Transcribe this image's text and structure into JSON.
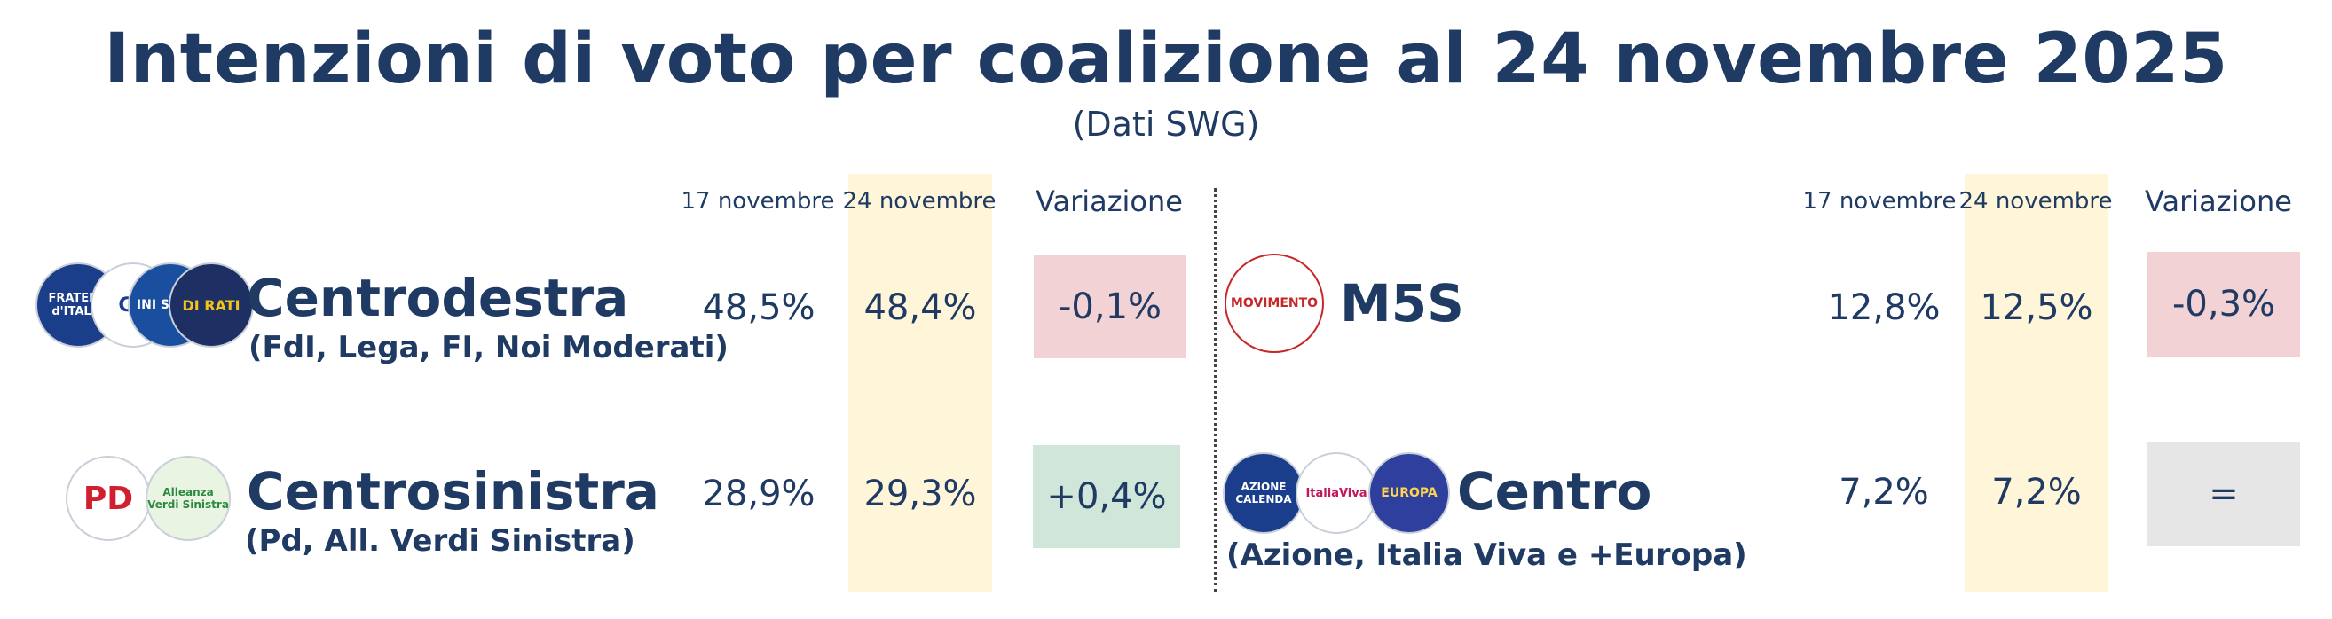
{
  "title": "Intenzioni di voto per coalizione al 24 novembre 2025",
  "subtitle": "(Dati SWG)",
  "column_headers": {
    "prev": "17 novembre",
    "curr": "24 novembre",
    "change": "Variazione"
  },
  "colors": {
    "highlight": "#fff6da",
    "negative": "#f2d2d4",
    "positive": "#cfe6d8",
    "neutral": "#e6e6e6",
    "text": "#1f3a63"
  },
  "chart_data": {
    "type": "table",
    "title": "Intenzioni di voto per coalizione al 24 novembre 2025",
    "columns": [
      "17 novembre",
      "24 novembre",
      "Variazione"
    ],
    "rows": [
      {
        "name": "Centrodestra",
        "members": "(FdI, Lega, FI, Noi Moderati)",
        "prev": "48,5%",
        "curr": "48,4%",
        "change": "-0,1%",
        "trend": "negative",
        "logos": [
          {
            "icon": "fdi-logo",
            "text": "FRATELLI d'ITALIA"
          },
          {
            "icon": "lega-logo",
            "text": "CA"
          },
          {
            "icon": "fi-logo",
            "text": "INI SCONI"
          },
          {
            "icon": "noi-moderati-logo",
            "text": "DI RATI"
          }
        ]
      },
      {
        "name": "Centrosinistra",
        "members": "(Pd, All. Verdi Sinistra)",
        "prev": "28,9%",
        "curr": "29,3%",
        "change": "+0,4%",
        "trend": "positive",
        "logos": [
          {
            "icon": "pd-logo",
            "text": "PD"
          },
          {
            "icon": "avs-logo",
            "text": "Alleanza Verdi Sinistra"
          }
        ]
      },
      {
        "name": "M5S",
        "members": "",
        "prev": "12,8%",
        "curr": "12,5%",
        "change": "-0,3%",
        "trend": "negative",
        "logos": [
          {
            "icon": "m5s-logo",
            "text": "MOVIMENTO"
          }
        ]
      },
      {
        "name": "Centro",
        "members": "(Azione, Italia Viva e +Europa)",
        "prev": "7,2%",
        "curr": "7,2%",
        "change": "=",
        "trend": "neutral",
        "logos": [
          {
            "icon": "azione-logo",
            "text": "AZIONE CALENDA"
          },
          {
            "icon": "italia-viva-logo",
            "text": "ItaliaViva"
          },
          {
            "icon": "piu-europa-logo",
            "text": "EUROPA"
          }
        ]
      }
    ]
  }
}
